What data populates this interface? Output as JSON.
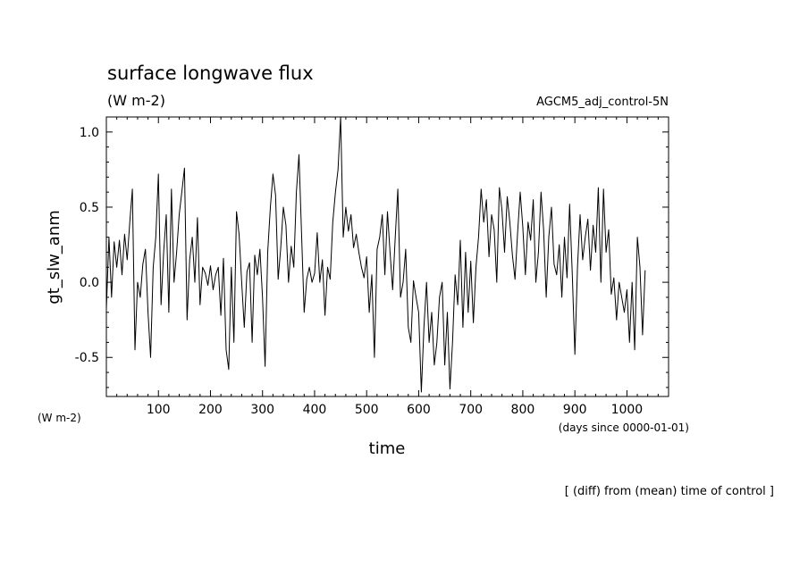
{
  "chart_data": {
    "type": "line",
    "title": "surface longwave flux",
    "title_units": "(W m-2)",
    "run_label": "AGCM5_adj_control-5N",
    "ylabel": "gt_slw_anm",
    "y_units": "(W m-2)",
    "xlabel": "time",
    "x_units": "(days since 0000-01-01)",
    "footnote": "[ (diff) from (mean) time of control ]",
    "xlim": [
      0,
      1080
    ],
    "ylim": [
      -0.76,
      1.1
    ],
    "x_ticks": [
      100,
      200,
      300,
      400,
      500,
      600,
      700,
      800,
      900,
      1000
    ],
    "y_ticks": [
      -0.5,
      0.0,
      0.5,
      1.0
    ],
    "y_tick_labels": [
      "-0.5",
      "0.0",
      "0.5",
      "1.0"
    ],
    "grid": false,
    "legend": "none",
    "series": [
      {
        "color": "#000000",
        "points": [
          [
            0,
            -0.18
          ],
          [
            5,
            0.3
          ],
          [
            10,
            -0.1
          ],
          [
            15,
            0.27
          ],
          [
            20,
            0.1
          ],
          [
            25,
            0.28
          ],
          [
            30,
            0.05
          ],
          [
            35,
            0.32
          ],
          [
            40,
            0.15
          ],
          [
            45,
            0.4
          ],
          [
            50,
            0.62
          ],
          [
            55,
            -0.45
          ],
          [
            60,
            0.0
          ],
          [
            65,
            -0.1
          ],
          [
            70,
            0.12
          ],
          [
            75,
            0.22
          ],
          [
            80,
            -0.2
          ],
          [
            85,
            -0.5
          ],
          [
            90,
            0.1
          ],
          [
            95,
            0.3
          ],
          [
            100,
            0.72
          ],
          [
            105,
            -0.15
          ],
          [
            110,
            0.2
          ],
          [
            115,
            0.45
          ],
          [
            120,
            -0.2
          ],
          [
            125,
            0.62
          ],
          [
            130,
            0.0
          ],
          [
            135,
            0.2
          ],
          [
            140,
            0.45
          ],
          [
            145,
            0.6
          ],
          [
            150,
            0.76
          ],
          [
            155,
            -0.25
          ],
          [
            160,
            0.15
          ],
          [
            165,
            0.3
          ],
          [
            170,
            0.0
          ],
          [
            175,
            0.43
          ],
          [
            180,
            -0.15
          ],
          [
            185,
            0.1
          ],
          [
            190,
            0.06
          ],
          [
            195,
            -0.02
          ],
          [
            200,
            0.11
          ],
          [
            205,
            -0.05
          ],
          [
            210,
            0.05
          ],
          [
            215,
            0.1
          ],
          [
            220,
            -0.22
          ],
          [
            225,
            0.16
          ],
          [
            230,
            -0.45
          ],
          [
            235,
            -0.58
          ],
          [
            240,
            0.1
          ],
          [
            245,
            -0.4
          ],
          [
            250,
            0.47
          ],
          [
            255,
            0.32
          ],
          [
            260,
            0.0
          ],
          [
            265,
            -0.3
          ],
          [
            270,
            0.07
          ],
          [
            275,
            0.13
          ],
          [
            280,
            -0.4
          ],
          [
            285,
            0.18
          ],
          [
            290,
            0.05
          ],
          [
            295,
            0.22
          ],
          [
            300,
            -0.1
          ],
          [
            305,
            -0.56
          ],
          [
            310,
            0.2
          ],
          [
            315,
            0.5
          ],
          [
            320,
            0.72
          ],
          [
            325,
            0.58
          ],
          [
            330,
            0.02
          ],
          [
            335,
            0.23
          ],
          [
            340,
            0.5
          ],
          [
            345,
            0.38
          ],
          [
            350,
            0.0
          ],
          [
            355,
            0.24
          ],
          [
            360,
            0.1
          ],
          [
            365,
            0.6
          ],
          [
            370,
            0.85
          ],
          [
            375,
            0.32
          ],
          [
            380,
            -0.2
          ],
          [
            385,
            0.02
          ],
          [
            390,
            0.1
          ],
          [
            395,
            0.0
          ],
          [
            400,
            0.06
          ],
          [
            405,
            0.33
          ],
          [
            410,
            0.0
          ],
          [
            415,
            0.15
          ],
          [
            420,
            -0.22
          ],
          [
            425,
            0.1
          ],
          [
            430,
            0.02
          ],
          [
            435,
            0.4
          ],
          [
            440,
            0.6
          ],
          [
            445,
            0.75
          ],
          [
            450,
            1.1
          ],
          [
            455,
            0.3
          ],
          [
            460,
            0.5
          ],
          [
            465,
            0.34
          ],
          [
            470,
            0.45
          ],
          [
            475,
            0.23
          ],
          [
            480,
            0.32
          ],
          [
            485,
            0.2
          ],
          [
            490,
            0.1
          ],
          [
            495,
            0.03
          ],
          [
            500,
            0.17
          ],
          [
            505,
            -0.2
          ],
          [
            510,
            0.05
          ],
          [
            515,
            -0.5
          ],
          [
            520,
            0.22
          ],
          [
            525,
            0.3
          ],
          [
            530,
            0.45
          ],
          [
            535,
            0.05
          ],
          [
            540,
            0.47
          ],
          [
            545,
            0.2
          ],
          [
            550,
            -0.05
          ],
          [
            555,
            0.3
          ],
          [
            560,
            0.62
          ],
          [
            565,
            -0.1
          ],
          [
            570,
            0.0
          ],
          [
            575,
            0.22
          ],
          [
            580,
            -0.3
          ],
          [
            585,
            -0.4
          ],
          [
            590,
            0.01
          ],
          [
            595,
            -0.1
          ],
          [
            600,
            -0.2
          ],
          [
            605,
            -0.73
          ],
          [
            610,
            -0.3
          ],
          [
            615,
            0.0
          ],
          [
            620,
            -0.4
          ],
          [
            625,
            -0.2
          ],
          [
            630,
            -0.55
          ],
          [
            635,
            -0.4
          ],
          [
            640,
            -0.1
          ],
          [
            645,
            0.0
          ],
          [
            650,
            -0.55
          ],
          [
            655,
            -0.2
          ],
          [
            660,
            -0.71
          ],
          [
            665,
            -0.4
          ],
          [
            670,
            0.05
          ],
          [
            675,
            -0.15
          ],
          [
            680,
            0.28
          ],
          [
            685,
            -0.3
          ],
          [
            690,
            0.2
          ],
          [
            695,
            -0.2
          ],
          [
            700,
            0.14
          ],
          [
            705,
            -0.27
          ],
          [
            710,
            0.1
          ],
          [
            715,
            0.3
          ],
          [
            720,
            0.62
          ],
          [
            725,
            0.4
          ],
          [
            730,
            0.55
          ],
          [
            735,
            0.17
          ],
          [
            740,
            0.45
          ],
          [
            745,
            0.35
          ],
          [
            750,
            0.0
          ],
          [
            755,
            0.63
          ],
          [
            760,
            0.48
          ],
          [
            765,
            0.2
          ],
          [
            770,
            0.57
          ],
          [
            775,
            0.4
          ],
          [
            780,
            0.18
          ],
          [
            785,
            0.02
          ],
          [
            790,
            0.33
          ],
          [
            795,
            0.6
          ],
          [
            800,
            0.37
          ],
          [
            805,
            0.05
          ],
          [
            810,
            0.4
          ],
          [
            815,
            0.28
          ],
          [
            820,
            0.55
          ],
          [
            825,
            0.0
          ],
          [
            830,
            0.2
          ],
          [
            835,
            0.6
          ],
          [
            840,
            0.35
          ],
          [
            845,
            -0.1
          ],
          [
            850,
            0.3
          ],
          [
            855,
            0.5
          ],
          [
            860,
            0.12
          ],
          [
            865,
            0.05
          ],
          [
            870,
            0.25
          ],
          [
            875,
            -0.1
          ],
          [
            880,
            0.3
          ],
          [
            885,
            0.03
          ],
          [
            890,
            0.52
          ],
          [
            895,
            0.05
          ],
          [
            900,
            -0.48
          ],
          [
            905,
            0.1
          ],
          [
            910,
            0.45
          ],
          [
            915,
            0.15
          ],
          [
            920,
            0.3
          ],
          [
            925,
            0.42
          ],
          [
            930,
            0.08
          ],
          [
            935,
            0.38
          ],
          [
            940,
            0.2
          ],
          [
            945,
            0.63
          ],
          [
            950,
            0.0
          ],
          [
            955,
            0.62
          ],
          [
            960,
            0.2
          ],
          [
            965,
            0.35
          ],
          [
            970,
            -0.08
          ],
          [
            975,
            0.03
          ],
          [
            980,
            -0.25
          ],
          [
            985,
            0.0
          ],
          [
            990,
            -0.1
          ],
          [
            995,
            -0.2
          ],
          [
            1000,
            -0.05
          ],
          [
            1005,
            -0.4
          ],
          [
            1010,
            0.0
          ],
          [
            1015,
            -0.45
          ],
          [
            1020,
            0.3
          ],
          [
            1025,
            0.1
          ],
          [
            1030,
            -0.35
          ],
          [
            1035,
            0.08
          ]
        ]
      }
    ]
  }
}
